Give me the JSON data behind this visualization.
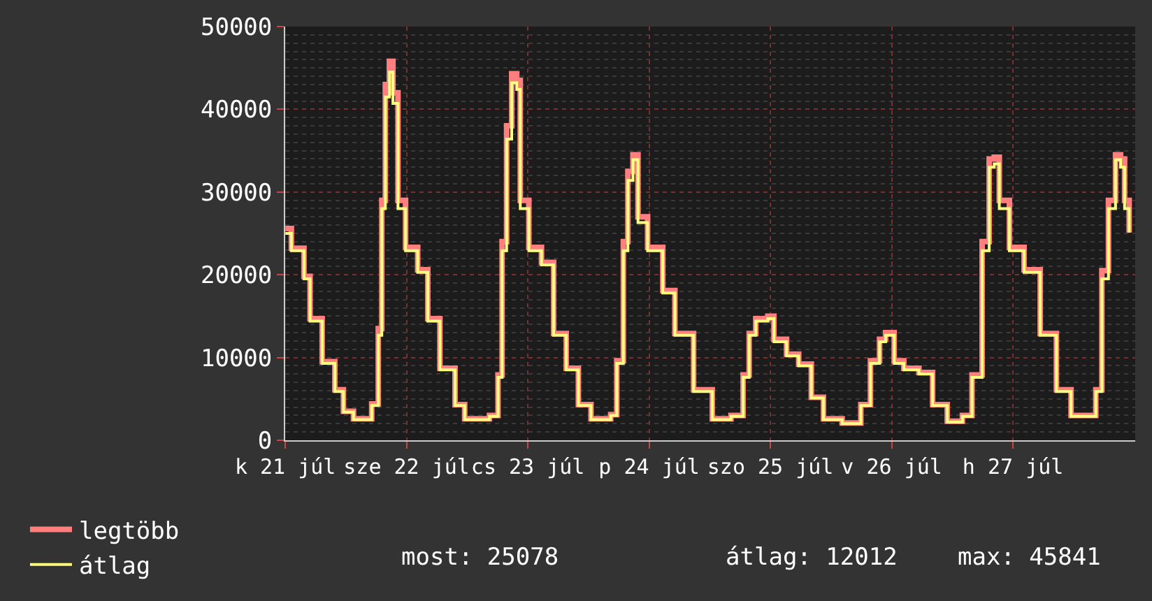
{
  "chart_data": {
    "type": "step",
    "x": [
      "--07-21T00:00",
      "--07-21T01:12",
      "--07-21T03:42",
      "--07-21T04:54",
      "--07-21T07:18",
      "--07-21T09:48",
      "--07-21T11:30",
      "--07-21T13:30",
      "--07-21T15:54",
      "--07-21T17:06",
      "--07-21T18:24",
      "--07-21T19:06",
      "--07-21T19:48",
      "--07-21T20:36",
      "--07-21T21:18",
      "--07-21T22:18",
      "--07-21T23:48",
      "--07-22T02:12",
      "--07-22T04:12",
      "--07-22T06:36",
      "--07-22T09:36",
      "--07-22T11:30",
      "--07-22T16:24",
      "--07-22T18:06",
      "--07-22T18:54",
      "--07-22T19:48",
      "--07-22T20:48",
      "--07-22T21:48",
      "--07-22T22:30",
      "--07-23T00:12",
      "--07-23T02:42",
      "--07-23T05:06",
      "--07-23T07:36",
      "--07-23T10:00",
      "--07-23T12:30",
      "--07-23T16:24",
      "--07-23T17:36",
      "--07-23T18:54",
      "--07-23T19:48",
      "--07-23T20:48",
      "--07-23T21:48",
      "--07-23T23:42",
      "--07-24T02:42",
      "--07-24T05:06",
      "--07-24T08:48",
      "--07-24T12:30",
      "--07-24T16:12",
      "--07-24T18:36",
      "--07-24T19:48",
      "--07-24T21:06",
      "--07-24T23:30",
      "--07-25T00:42",
      "--07-25T03:12",
      "--07-25T05:36",
      "--07-25T08:06",
      "--07-25T10:30",
      "--07-25T14:12",
      "--07-25T17:54",
      "--07-25T19:48",
      "--07-25T21:36",
      "--07-25T22:48",
      "--07-26T00:30",
      "--07-26T02:24",
      "--07-26T05:24",
      "--07-26T08:06",
      "--07-26T11:00",
      "--07-26T14:00",
      "--07-26T15:54",
      "--07-26T17:54",
      "--07-26T19:18",
      "--07-26T20:18",
      "--07-26T21:18",
      "--07-26T23:18",
      "--07-27T02:12",
      "--07-27T05:24",
      "--07-27T08:36",
      "--07-27T11:30",
      "--07-27T14:24",
      "--07-27T16:24",
      "--07-27T17:36",
      "--07-27T18:54",
      "--07-27T20:18",
      "--07-27T21:18",
      "--07-27T22:06",
      "--07-27T23:00"
    ],
    "series": [
      {
        "name": "legtöbb",
        "color": "#ff7f7f",
        "values": [
          25600,
          23200,
          19800,
          14700,
          9500,
          6100,
          3500,
          2600,
          2600,
          4400,
          13500,
          29000,
          43000,
          45800,
          42000,
          29000,
          23300,
          20600,
          14700,
          8700,
          4300,
          2600,
          3000,
          7900,
          24000,
          38000,
          44300,
          43500,
          29000,
          23300,
          21500,
          12900,
          8700,
          4300,
          2600,
          3100,
          9600,
          24000,
          32500,
          34500,
          27000,
          23300,
          18100,
          12900,
          6100,
          2600,
          3000,
          7900,
          12900,
          14700,
          15000,
          12200,
          10400,
          9200,
          5200,
          2600,
          2100,
          4300,
          9600,
          12200,
          13000,
          9600,
          8700,
          8200,
          4300,
          2300,
          3000,
          7900,
          24000,
          34000,
          34200,
          29000,
          23300,
          20600,
          12900,
          6100,
          3000,
          3000,
          6100,
          20500,
          29000,
          34500,
          34000,
          29000,
          25100
        ]
      },
      {
        "name": "átlag",
        "color": "#ffff80",
        "values": [
          25000,
          22900,
          19500,
          14400,
          9300,
          5900,
          3400,
          2500,
          2500,
          4200,
          12700,
          28000,
          41500,
          44500,
          40700,
          28000,
          22900,
          20300,
          14400,
          8500,
          4200,
          2500,
          2900,
          7600,
          22900,
          36400,
          43200,
          42400,
          28000,
          22900,
          21200,
          12700,
          8500,
          4200,
          2500,
          3000,
          9300,
          22900,
          31400,
          33900,
          26300,
          22900,
          17800,
          12700,
          5900,
          2500,
          2900,
          7600,
          12700,
          14400,
          14700,
          11900,
          10200,
          9000,
          5100,
          2500,
          2000,
          4200,
          9300,
          11900,
          12700,
          9300,
          8500,
          8000,
          4200,
          2200,
          2900,
          7600,
          22900,
          33000,
          33400,
          28000,
          22900,
          20300,
          12700,
          5900,
          2900,
          2900,
          5900,
          19500,
          28000,
          33900,
          33000,
          28000,
          25100
        ]
      }
    ],
    "xlim": [
      "--07-21T00:00",
      "--07-28T00:12"
    ],
    "xticks": [
      {
        "value": "--07-21",
        "label": "k 21 júl"
      },
      {
        "value": "--07-22",
        "label": "sze 22 júl"
      },
      {
        "value": "--07-23",
        "label": "cs 23 júl"
      },
      {
        "value": "--07-24",
        "label": "p 24 júl"
      },
      {
        "value": "--07-25",
        "label": "szo 25 júl"
      },
      {
        "value": "--07-26",
        "label": "v 26 júl"
      },
      {
        "value": "--07-27",
        "label": "h 27 júl"
      }
    ],
    "ylim": [
      0,
      50000
    ],
    "yticks": [
      0,
      10000,
      20000,
      30000,
      40000,
      50000
    ],
    "grid": true,
    "legend": "bottom left",
    "annotations": [
      "most: 25078",
      "átlag: 12012",
      "max: 45841"
    ]
  }
}
